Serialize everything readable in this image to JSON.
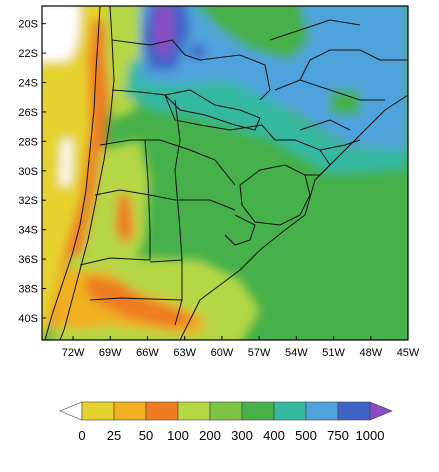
{
  "map": {
    "lat_labels": [
      "20S",
      "22S",
      "24S",
      "26S",
      "28S",
      "30S",
      "32S",
      "34S",
      "36S",
      "38S",
      "40S"
    ],
    "lon_labels": [
      "72W",
      "69W",
      "66W",
      "63W",
      "60W",
      "57W",
      "54W",
      "51W",
      "48W",
      "45W"
    ],
    "extent": {
      "lon_min": -74.5,
      "lon_max": -45,
      "lat_min": -41.5,
      "lat_max": -18.8
    },
    "variable_classes_colors": {
      "0": "#ffffff",
      "0-25": "#e6d22e",
      "25-50": "#f0b020",
      "50-100": "#ef7c22",
      "100-200": "#b6d744",
      "200-300": "#7dc444",
      "300-400": "#46b04a",
      "400-500": "#35b8a0",
      "500-750": "#4fa3dc",
      "750-1000": "#3f62c7",
      "1000+": "#8b4cc2"
    }
  },
  "colorbar": {
    "labels": [
      "0",
      "25",
      "50",
      "100",
      "200",
      "300",
      "400",
      "500",
      "750",
      "1000"
    ],
    "colors": [
      "#ffffff",
      "#e6d22e",
      "#f0b020",
      "#ef7c22",
      "#b6d744",
      "#7dc444",
      "#46b04a",
      "#35b8a0",
      "#4fa3dc",
      "#3f62c7",
      "#8b4cc2"
    ]
  }
}
